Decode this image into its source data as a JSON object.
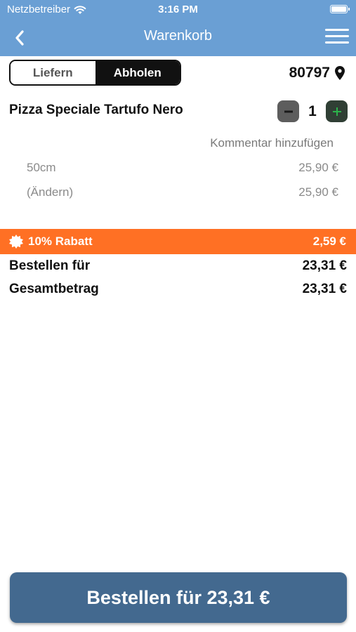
{
  "status_bar": {
    "carrier": "Netzbetreiber",
    "time": "3:16 PM"
  },
  "nav": {
    "title": "Warenkorb",
    "back_icon": "chevron-left-icon",
    "menu_icon": "hamburger-menu-icon"
  },
  "order_mode": {
    "options": [
      "Liefern",
      "Abholen"
    ],
    "selected": "Abholen"
  },
  "location": {
    "zip": "80797",
    "icon": "map-pin-icon"
  },
  "item": {
    "name": "Pizza Speciale Tartufo Nero",
    "quantity": "1",
    "comment_label": "Kommentar hinzufügen",
    "details": [
      {
        "label": "50cm",
        "price": "25,90 €"
      },
      {
        "label": "(Ändern)",
        "price": "25,90 €"
      }
    ]
  },
  "discount": {
    "label": "10% Rabatt",
    "amount": "2,59 €",
    "color": "#ff7024"
  },
  "summary": {
    "order_for_label": "Bestellen für",
    "order_for_value": "23,31 €",
    "total_label": "Gesamtbetrag",
    "total_value": "23,31 €"
  },
  "order_button": {
    "label": "Bestellen für 23,31 €",
    "color": "#43698f"
  },
  "colors": {
    "header": "#6a9fd4",
    "plus_button": "#303f35",
    "minus_button": "#5d5d5d"
  }
}
